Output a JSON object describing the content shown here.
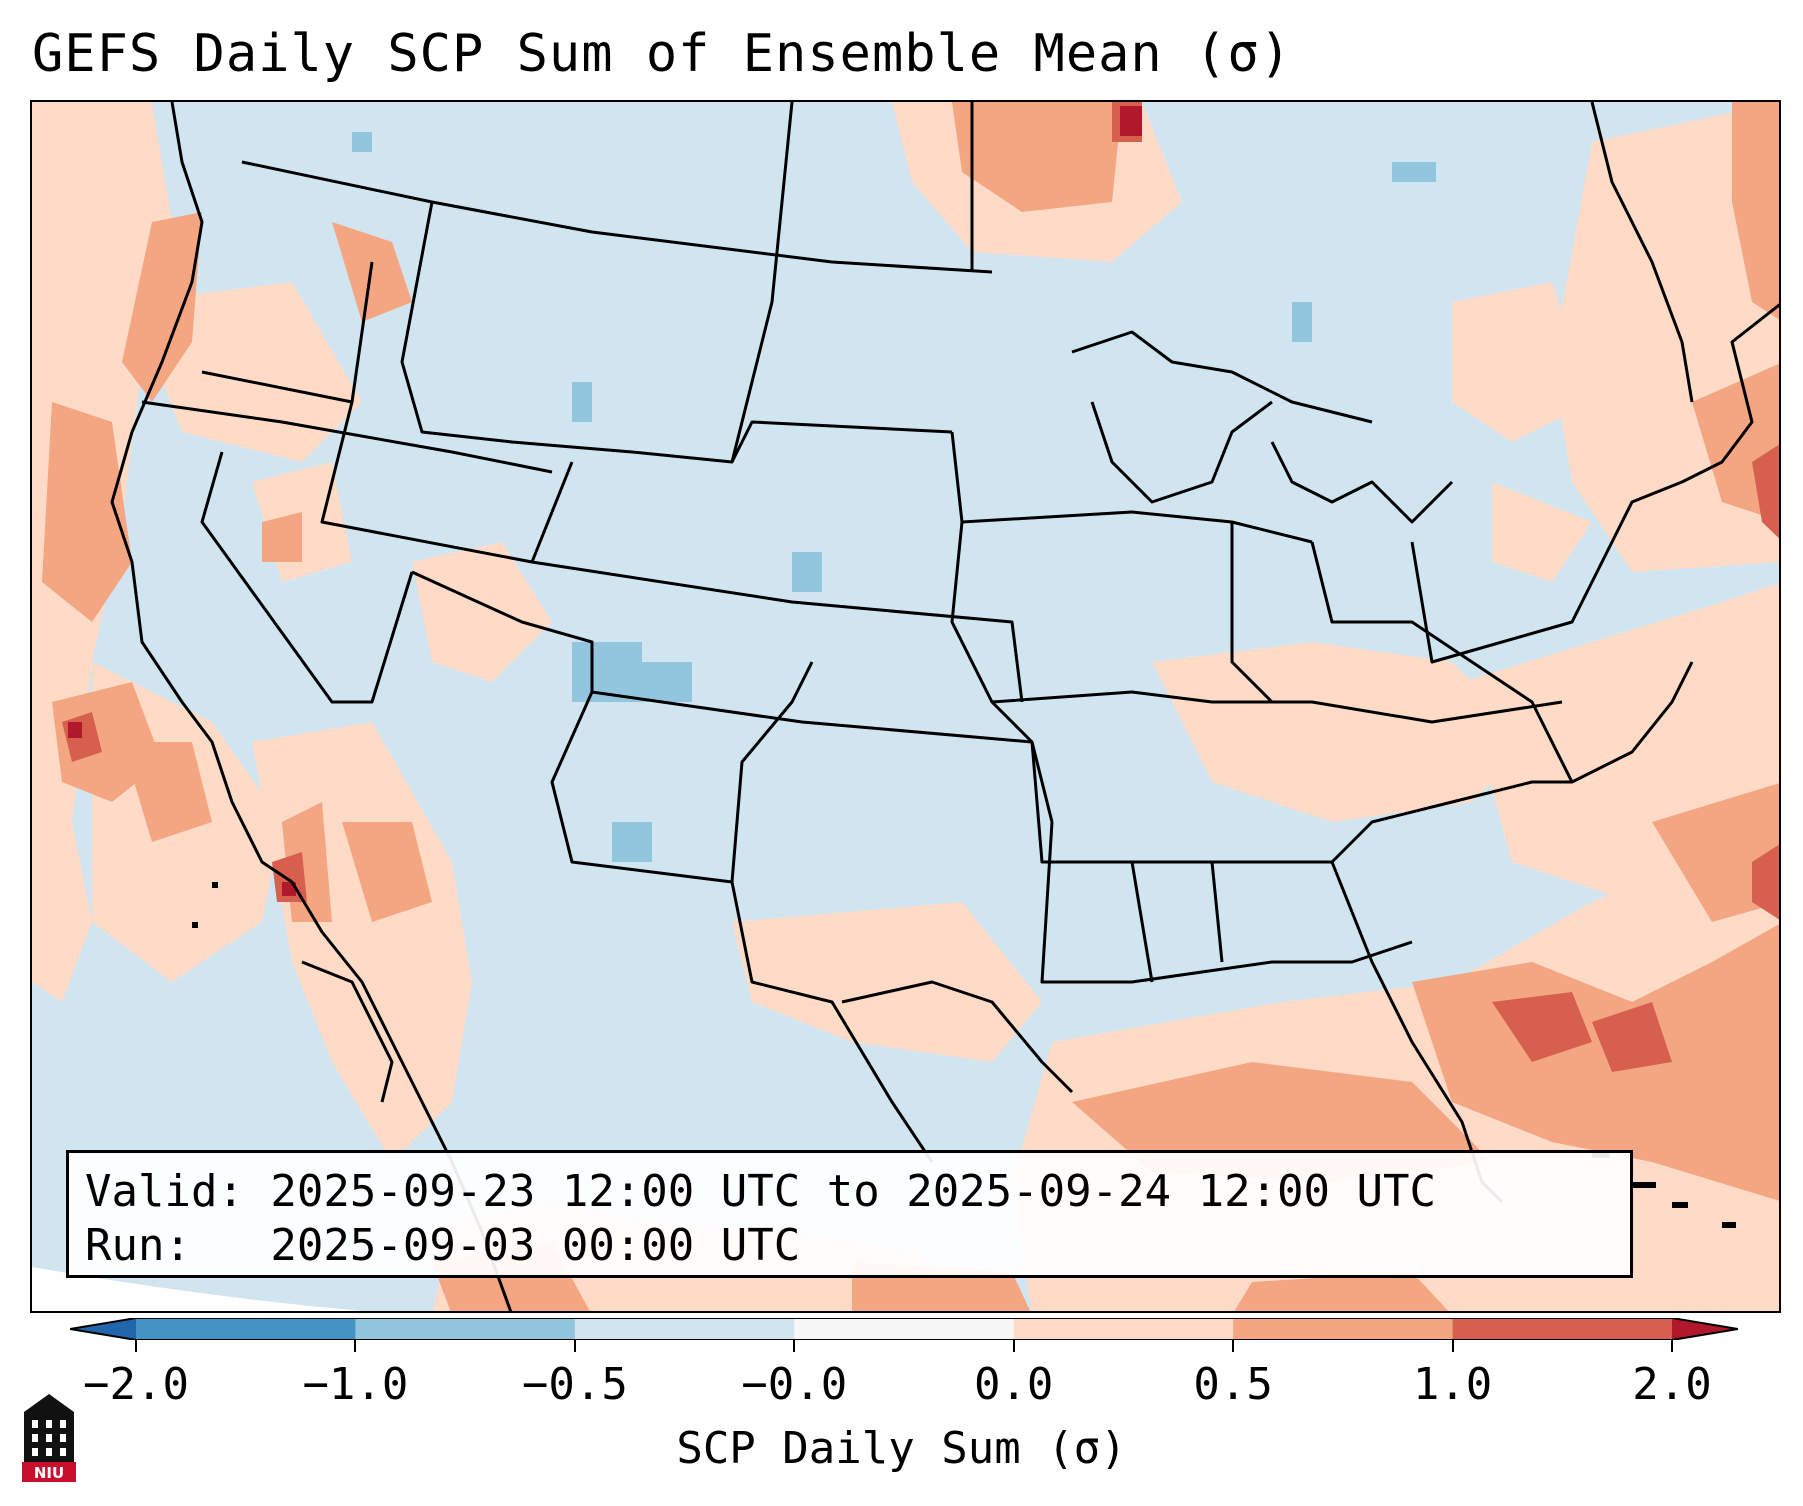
{
  "title": "GEFS Daily SCP Sum of Ensemble Mean (σ)",
  "info": {
    "valid_line": "Valid: 2025-09-23 12:00 UTC to 2025-09-24 12:00 UTC",
    "run_line": "Run:   2025-09-03 00:00 UTC"
  },
  "colorbar": {
    "label": "SCP Daily Sum (σ)",
    "ticks": [
      "−2.0",
      "−1.0",
      "−0.5",
      "−0.0",
      "0.0",
      "0.5",
      "1.0",
      "2.0"
    ],
    "bin_colors": [
      "#4393c3",
      "#92c5de",
      "#d1e5f0",
      "#f7f7f7",
      "#fddbc7",
      "#f4a582",
      "#d6604d"
    ],
    "under_color": "#2166ac",
    "over_color": "#b2182b"
  },
  "logo": {
    "text": "NIU"
  },
  "icons": {
    "logo": "niu-tower-logo-icon"
  }
}
